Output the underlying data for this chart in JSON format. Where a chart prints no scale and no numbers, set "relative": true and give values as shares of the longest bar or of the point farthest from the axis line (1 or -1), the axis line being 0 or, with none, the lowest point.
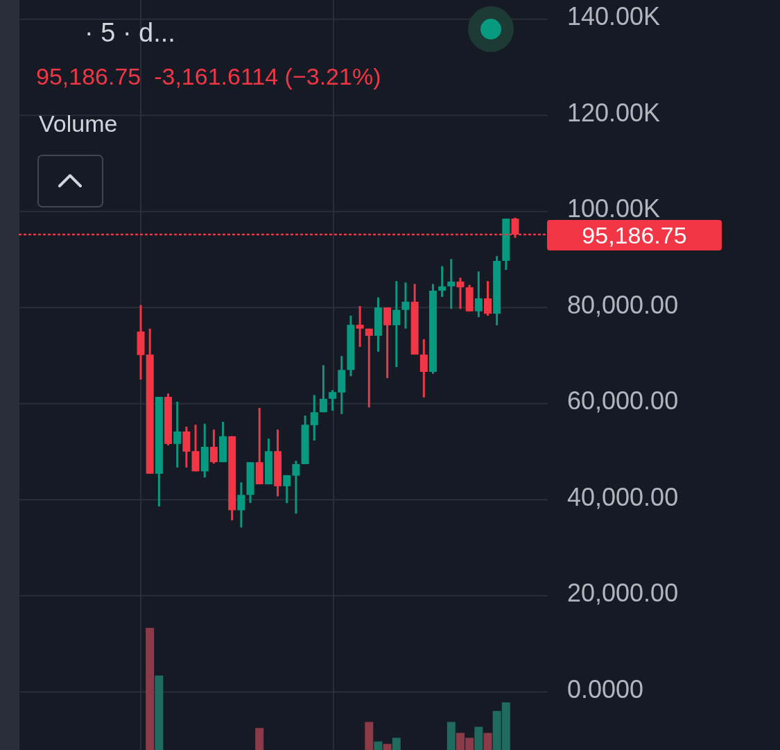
{
  "chart_data": [
    {
      "type": "candlestick",
      "title": "· 5 · d...",
      "subtitle": "95,186.75  -3,161.6114 (−3.21%)",
      "categories": [
        null,
        null,
        null,
        null,
        null,
        null,
        null,
        null,
        null,
        null,
        null,
        null,
        null,
        null,
        null,
        null,
        null,
        null,
        null,
        null,
        null,
        null,
        null,
        null,
        null,
        null,
        null,
        null,
        null,
        null,
        null,
        null,
        null,
        null,
        null,
        null,
        null,
        null,
        null,
        null,
        null,
        null
      ],
      "ohlc": [
        [
          75000,
          80500,
          65000,
          70100
        ],
        [
          70200,
          75600,
          45400,
          45400
        ],
        [
          45400,
          61400,
          38600,
          61400
        ],
        [
          61400,
          62100,
          51300,
          51600
        ],
        [
          51600,
          60400,
          46700,
          54200
        ],
        [
          54200,
          55200,
          46700,
          50000
        ],
        [
          50100,
          55600,
          45900,
          45900
        ],
        [
          45900,
          55800,
          44600,
          51000
        ],
        [
          51000,
          54600,
          47500,
          47800
        ],
        [
          47800,
          56200,
          47800,
          53200
        ],
        [
          53200,
          53200,
          35700,
          37800
        ],
        [
          37800,
          43600,
          34200,
          41000
        ],
        [
          41000,
          47800,
          39300,
          47800
        ],
        [
          47800,
          59100,
          43200,
          43200
        ],
        [
          43200,
          52700,
          43200,
          50100
        ],
        [
          50100,
          54600,
          40700,
          42800
        ],
        [
          42800,
          45100,
          39300,
          45100
        ],
        [
          45000,
          48100,
          37100,
          47400
        ],
        [
          47400,
          57500,
          47400,
          55600
        ],
        [
          55500,
          61800,
          52300,
          58200
        ],
        [
          58200,
          68000,
          58200,
          61000
        ],
        [
          61000,
          62800,
          58500,
          62400
        ],
        [
          62300,
          69900,
          57800,
          67000
        ],
        [
          67000,
          78300,
          65700,
          76400
        ],
        [
          76400,
          80300,
          71800,
          75600
        ],
        [
          75600,
          75600,
          59200,
          74100
        ],
        [
          74100,
          82100,
          70800,
          80000
        ],
        [
          80000,
          80000,
          65300,
          76300
        ],
        [
          76300,
          85500,
          67600,
          79500
        ],
        [
          79500,
          85200,
          75600,
          81200
        ],
        [
          81200,
          84900,
          70200,
          70200
        ],
        [
          70200,
          73400,
          61300,
          66600
        ],
        [
          66600,
          84900,
          66200,
          83500
        ],
        [
          83500,
          88600,
          82200,
          84400
        ],
        [
          84400,
          90100,
          79700,
          85400
        ],
        [
          85400,
          86200,
          79700,
          84200
        ],
        [
          84200,
          84700,
          79200,
          79200
        ],
        [
          79200,
          87500,
          78000,
          81900
        ],
        [
          81900,
          85500,
          78300,
          78700
        ],
        [
          78700,
          90700,
          76300,
          89700
        ],
        [
          89700,
          98500,
          87800,
          98500
        ],
        [
          98500,
          98700,
          94500,
          95186.75
        ]
      ],
      "colors": [
        "#f23645",
        "#f23645",
        "#089981",
        "#f23645",
        "#089981",
        "#f23645",
        "#f23645",
        "#089981",
        "#f23645",
        "#089981",
        "#f23645",
        "#089981",
        "#089981",
        "#f23645",
        "#089981",
        "#f23645",
        "#089981",
        "#089981",
        "#089981",
        "#089981",
        "#089981",
        "#089981",
        "#089981",
        "#089981",
        "#f23645",
        "#f23645",
        "#089981",
        "#f23645",
        "#089981",
        "#089981",
        "#f23645",
        "#f23645",
        "#089981",
        "#089981",
        "#089981",
        "#f23645",
        "#f23645",
        "#089981",
        "#f23645",
        "#089981",
        "#089981",
        "#f23645"
      ],
      "ylim": [
        -12100,
        144000
      ],
      "yticks": [
        {
          "value": 0,
          "label": "0.0000"
        },
        {
          "value": 20000,
          "label": "20,000.00"
        },
        {
          "value": 40000,
          "label": "40,000.00"
        },
        {
          "value": 60000,
          "label": "60,000.00"
        },
        {
          "value": 80000,
          "label": "80,000.00"
        },
        {
          "value": 100000,
          "label": "100.00K"
        },
        {
          "value": 120000,
          "label": "120.00K"
        },
        {
          "value": 140000,
          "label": "140.00K"
        }
      ],
      "grid": "y",
      "ref_lines": [
        {
          "axis": "y",
          "value": 95186.75,
          "label": "95,186.75",
          "color": "#f23645",
          "line_style": "dotted"
        }
      ]
    },
    {
      "type": "bar",
      "title": "Volume",
      "relative": true,
      "categories": [
        null,
        null,
        null,
        null,
        null,
        null,
        null,
        null,
        null,
        null,
        null,
        null,
        null,
        null,
        null,
        null,
        null,
        null,
        null,
        null,
        null,
        null,
        null,
        null,
        null,
        null,
        null,
        null,
        null,
        null,
        null,
        null,
        null,
        null,
        null,
        null,
        null,
        null,
        null,
        null,
        null,
        null
      ],
      "values": [
        null,
        1,
        0.61,
        null,
        null,
        null,
        null,
        null,
        null,
        null,
        null,
        null,
        null,
        0.18,
        null,
        null,
        null,
        null,
        null,
        null,
        null,
        null,
        null,
        null,
        null,
        0.23,
        0.07,
        0.05,
        0.1,
        null,
        null,
        null,
        null,
        null,
        0.23,
        0.14,
        0.1,
        0.19,
        0.14,
        0.32,
        0.39,
        null
      ],
      "colors": [
        null,
        "#8c3a47",
        "#1f6b5e",
        null,
        null,
        null,
        null,
        null,
        null,
        null,
        null,
        null,
        null,
        "#8c3a47",
        null,
        null,
        null,
        null,
        null,
        null,
        null,
        null,
        null,
        null,
        null,
        "#8c3a47",
        "#1f6b5e",
        "#8c3a47",
        "#1f6b5e",
        null,
        null,
        null,
        null,
        null,
        "#1f6b5e",
        "#8c3a47",
        "#8c3a47",
        "#1f6b5e",
        "#8c3a47",
        "#1f6b5e",
        "#1f6b5e",
        null
      ]
    }
  ]
}
